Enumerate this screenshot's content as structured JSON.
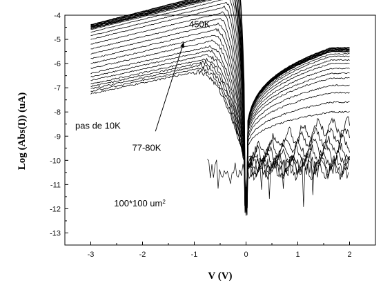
{
  "chart_data": {
    "type": "line",
    "title": "",
    "xlabel": "V (V)",
    "ylabel": "Log (Abs(I))  (uA)",
    "xlim": [
      -3.5,
      2.5
    ],
    "ylim": [
      -13.5,
      -4
    ],
    "xticks": [
      -3,
      -2,
      -1,
      0,
      1,
      2
    ],
    "yticks": [
      -4,
      -5,
      -6,
      -7,
      -8,
      -9,
      -10,
      -11,
      -12,
      -13
    ],
    "grid": false,
    "legend": "none",
    "line_color": "#000000",
    "x_range_of_data": [
      -3,
      2
    ],
    "annotations": [
      {
        "text": "450K",
        "x": -1.1,
        "y": -4.5
      },
      {
        "text": "77-80K",
        "x": -2.2,
        "y": -9.6
      },
      {
        "text": "pas de 10K",
        "x": -3.3,
        "y": -8.7
      },
      {
        "text": "100*100 um",
        "superscript": "2",
        "x": -2.55,
        "y": -11.9
      }
    ],
    "arrow": {
      "from": [
        -1.75,
        -8.8
      ],
      "to": [
        -1.2,
        -5.1
      ]
    },
    "series_count": 30,
    "series_description": {
      "curves_at_v_minus_3": [
        -4.4,
        -4.45,
        -4.5,
        -4.55,
        -4.6,
        -4.7,
        -4.85,
        -5.0,
        -5.2,
        -5.4,
        -5.6,
        -5.8,
        -6.0,
        -6.2,
        -6.4,
        -6.55,
        -6.7,
        -6.85,
        -6.95,
        -7.05,
        -7.15,
        -7.25
      ],
      "curves_at_v_plus_2": [
        -5.35,
        -5.4,
        -5.45,
        -5.5,
        -5.6,
        -5.7,
        -5.85,
        -6.0,
        -6.2,
        -6.4,
        -6.6,
        -6.9,
        -7.2,
        -7.6,
        -8.0,
        -8.6,
        -9.0,
        -9.4,
        -9.7,
        -10.0,
        -10.2,
        -10.4
      ],
      "noise_floor": -10.3
    }
  }
}
